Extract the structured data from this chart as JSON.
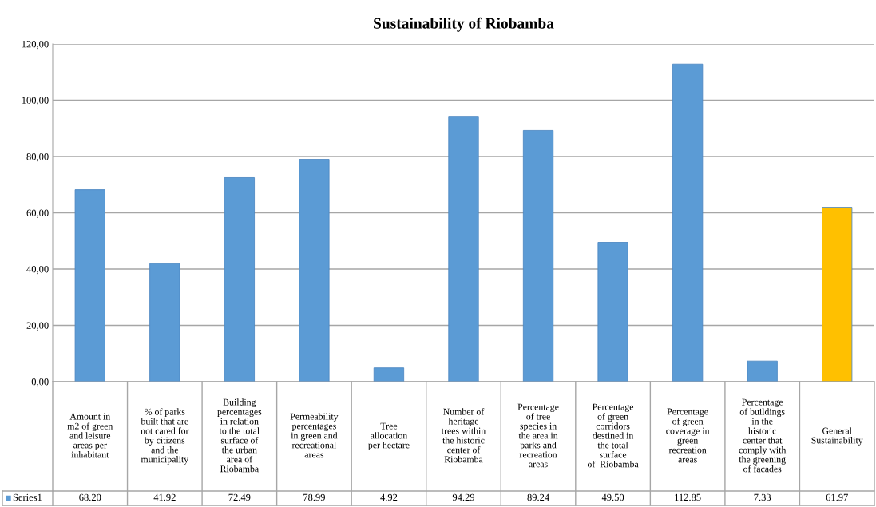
{
  "chart_data": {
    "type": "bar",
    "title": "Sustainability of Riobamba",
    "categories": [
      "Amount in\nm2 of green\nand leisure\nareas per\ninhabitant",
      "% of parks\nbuilt that are\nnot cared for\nby citizens\nand the\nmunicipality",
      "Building\npercentages\nin relation\nto the total\nsurface of\nthe urban\narea of\nRiobamba",
      "Permeability\npercentages\nin green and\nrecreational\nareas",
      "Tree\nallocation\nper hectare",
      "Number of\nheritage\ntrees within\nthe historic\ncenter of\nRiobamba",
      "Percentage\nof tree\nspecies in\nthe area in\nparks and\nrecreation\nareas",
      "Percentage\nof green\ncorridors\ndestined in\nthe total\nsurface\nof  Riobamba",
      "Percentage\nof green\ncoverage in\ngreen\nrecreation\nareas",
      "Percentage\nof buildings\nin the\nhistoric\ncenter that\ncomply with\nthe greening\nof facades",
      "General\nSustainability"
    ],
    "series": [
      {
        "name": "Series1",
        "color": "#5b9bd5",
        "colors": [
          "#5b9bd5",
          "#5b9bd5",
          "#5b9bd5",
          "#5b9bd5",
          "#5b9bd5",
          "#5b9bd5",
          "#5b9bd5",
          "#5b9bd5",
          "#5b9bd5",
          "#5b9bd5",
          "#ffc000"
        ],
        "values": [
          68.2,
          41.92,
          72.49,
          78.99,
          4.92,
          94.29,
          89.24,
          49.5,
          112.85,
          7.33,
          61.97
        ],
        "value_labels": [
          "68.20",
          "41.92",
          "72.49",
          "78.99",
          "4.92",
          "94.29",
          "89.24",
          "49.50",
          "112.85",
          "7.33",
          "61.97"
        ]
      }
    ],
    "ylim": [
      0,
      120
    ],
    "yticks": [
      {
        "value": 0,
        "label": "0,00"
      },
      {
        "value": 20,
        "label": "20,00"
      },
      {
        "value": 40,
        "label": "40,00"
      },
      {
        "value": 60,
        "label": "60,00"
      },
      {
        "value": 80,
        "label": "80,00"
      },
      {
        "value": 100,
        "label": "100,00"
      },
      {
        "value": 120,
        "label": "120,00"
      }
    ],
    "grid": "y"
  }
}
